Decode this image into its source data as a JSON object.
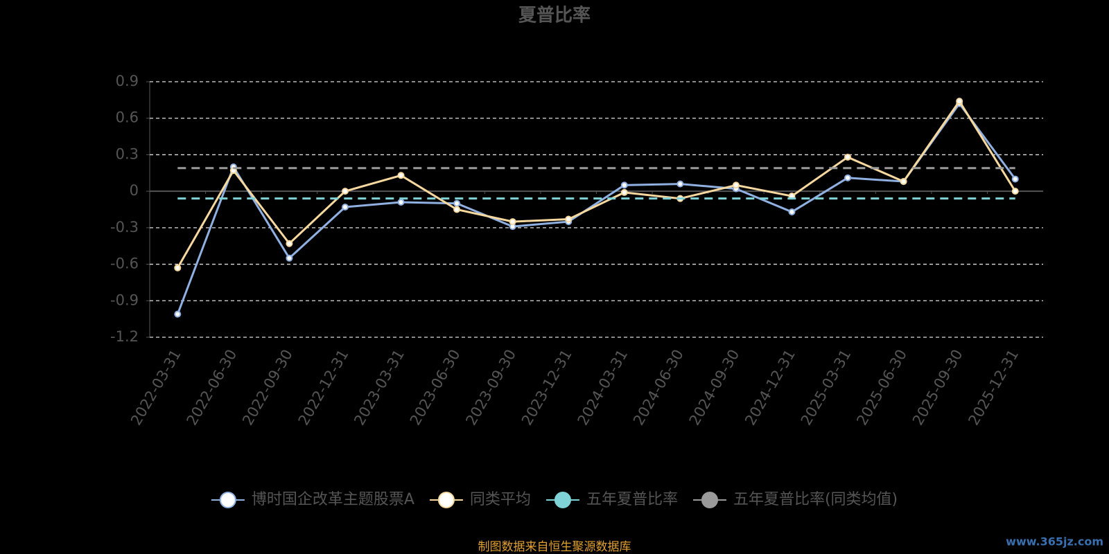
{
  "chart_data": {
    "type": "line",
    "title": "夏普比率",
    "categories": [
      "2022-03-31",
      "2022-06-30",
      "2022-09-30",
      "2022-12-31",
      "2023-03-31",
      "2023-06-30",
      "2023-09-30",
      "2023-12-31",
      "2024-03-31",
      "2024-06-30",
      "2024-09-30",
      "2024-12-31",
      "2025-03-31",
      "2025-06-30",
      "2025-09-30",
      "2025-12-31"
    ],
    "series": [
      {
        "name": "博时国企改革主题股票A",
        "color": "#8fb0e0",
        "values": [
          -1.01,
          0.2,
          -0.55,
          -0.13,
          -0.09,
          -0.1,
          -0.29,
          -0.25,
          0.05,
          0.06,
          0.02,
          -0.17,
          0.11,
          0.08,
          0.72,
          0.1
        ]
      },
      {
        "name": "同类平均",
        "color": "#f7d9a0",
        "values": [
          -0.63,
          0.17,
          -0.43,
          0,
          0.13,
          -0.15,
          -0.25,
          -0.23,
          -0.01,
          -0.06,
          0.05,
          -0.04,
          0.28,
          0.08,
          0.74,
          0
        ]
      },
      {
        "name": "五年夏普比率",
        "color": "#7fd3d6",
        "style": "dashed",
        "value": -0.06
      },
      {
        "name": "五年夏普比率(同类均值)",
        "color": "#9a9a9a",
        "style": "dashed",
        "value": 0.19
      }
    ],
    "ylim": [
      -1.2,
      0.9
    ],
    "yticks": [
      0.9,
      0.6,
      0.3,
      0,
      -0.3,
      -0.6,
      -0.9,
      -1.2
    ],
    "grid": true,
    "source": "制图数据来自恒生聚源数据库",
    "watermark": "www.365jz.com"
  }
}
